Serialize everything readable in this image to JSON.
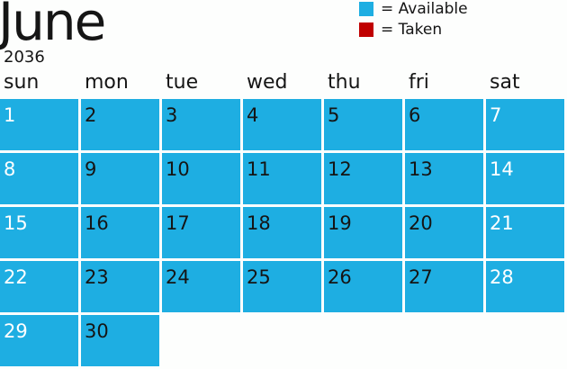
{
  "header": {
    "month": "June",
    "year": "2036"
  },
  "legend": [
    {
      "label": "= Available",
      "color": "#1eaee2"
    },
    {
      "label": "= Taken",
      "color": "#c00000"
    }
  ],
  "weekdays": [
    "sun",
    "mon",
    "tue",
    "wed",
    "thu",
    "fri",
    "sat"
  ],
  "first_weekday": 0,
  "days": [
    {
      "day": "1",
      "status": "available"
    },
    {
      "day": "2",
      "status": "available"
    },
    {
      "day": "3",
      "status": "available"
    },
    {
      "day": "4",
      "status": "available"
    },
    {
      "day": "5",
      "status": "available"
    },
    {
      "day": "6",
      "status": "available"
    },
    {
      "day": "7",
      "status": "available"
    },
    {
      "day": "8",
      "status": "available"
    },
    {
      "day": "9",
      "status": "available"
    },
    {
      "day": "10",
      "status": "available"
    },
    {
      "day": "11",
      "status": "available"
    },
    {
      "day": "12",
      "status": "available"
    },
    {
      "day": "13",
      "status": "available"
    },
    {
      "day": "14",
      "status": "available"
    },
    {
      "day": "15",
      "status": "available"
    },
    {
      "day": "16",
      "status": "available"
    },
    {
      "day": "17",
      "status": "available"
    },
    {
      "day": "18",
      "status": "available"
    },
    {
      "day": "19",
      "status": "available"
    },
    {
      "day": "20",
      "status": "available"
    },
    {
      "day": "21",
      "status": "available"
    },
    {
      "day": "22",
      "status": "available"
    },
    {
      "day": "23",
      "status": "available"
    },
    {
      "day": "24",
      "status": "available"
    },
    {
      "day": "25",
      "status": "available"
    },
    {
      "day": "26",
      "status": "available"
    },
    {
      "day": "27",
      "status": "available"
    },
    {
      "day": "28",
      "status": "available"
    },
    {
      "day": "29",
      "status": "available"
    },
    {
      "day": "30",
      "status": "available"
    }
  ],
  "colors": {
    "available": "#1eaee2",
    "taken": "#c00000"
  }
}
